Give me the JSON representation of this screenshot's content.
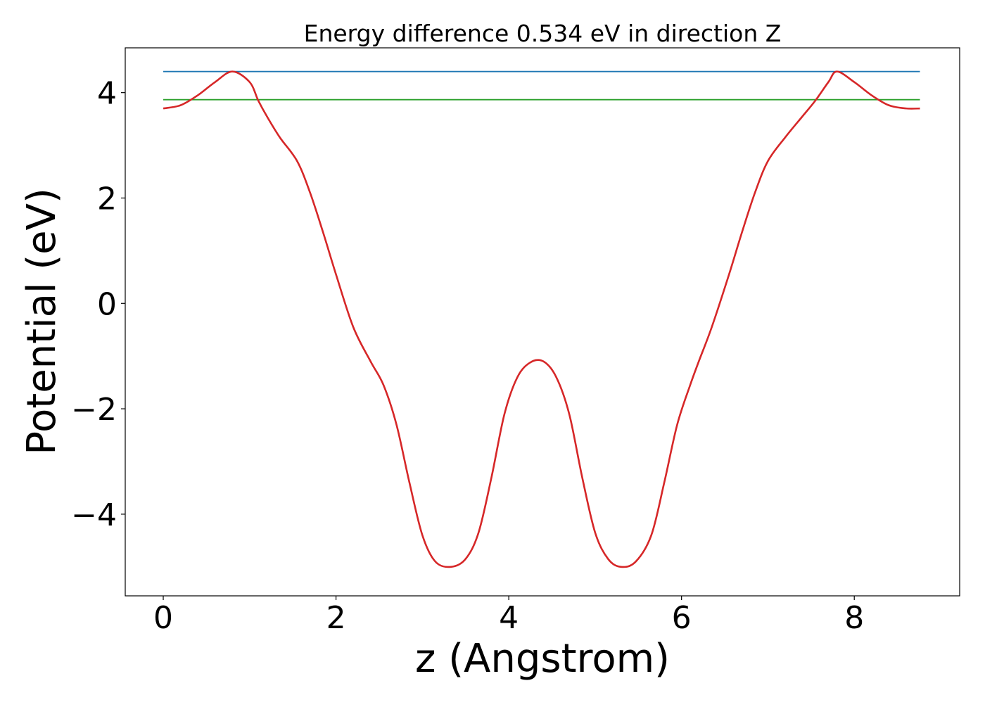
{
  "chart_data": {
    "type": "line",
    "title": "Energy difference 0.534 eV in direction Z",
    "xlabel": "z (Angstrom)",
    "ylabel": "Potential (eV)",
    "xlim": [
      -0.44,
      9.22
    ],
    "ylim": [
      -5.55,
      4.85
    ],
    "xticks": [
      0,
      2,
      4,
      6,
      8
    ],
    "xtick_labels": [
      "0",
      "2",
      "4",
      "6",
      "8"
    ],
    "yticks": [
      -4,
      -2,
      0,
      2,
      4
    ],
    "ytick_labels": [
      "−4",
      "−2",
      "0",
      "2",
      "4"
    ],
    "grid": false,
    "legend": "none",
    "series": [
      {
        "color": "#d62728",
        "x": [
          0.0,
          0.2,
          0.4,
          0.6,
          0.8,
          1.0,
          1.1,
          1.2,
          1.35,
          1.55,
          1.7,
          1.85,
          2.0,
          2.2,
          2.4,
          2.55,
          2.7,
          2.85,
          3.0,
          3.15,
          3.33,
          3.5,
          3.65,
          3.8,
          3.95,
          4.1,
          4.25,
          4.4,
          4.55,
          4.7,
          4.85,
          5.0,
          5.15,
          5.3,
          5.47,
          5.65,
          5.8,
          5.95,
          6.1,
          6.2,
          6.35,
          6.55,
          6.7,
          6.85,
          7.0,
          7.2,
          7.4,
          7.55,
          7.7,
          7.8,
          8.0,
          8.2,
          8.4,
          8.6,
          8.76
        ],
        "y": [
          3.7,
          3.76,
          3.95,
          4.2,
          4.4,
          4.2,
          3.85,
          3.55,
          3.15,
          2.7,
          2.1,
          1.35,
          0.55,
          -0.45,
          -1.1,
          -1.55,
          -2.3,
          -3.4,
          -4.4,
          -4.9,
          -5.0,
          -4.85,
          -4.35,
          -3.3,
          -2.1,
          -1.4,
          -1.12,
          -1.1,
          -1.4,
          -2.1,
          -3.3,
          -4.35,
          -4.85,
          -5.0,
          -4.9,
          -4.4,
          -3.4,
          -2.3,
          -1.55,
          -1.1,
          -0.45,
          0.55,
          1.35,
          2.1,
          2.7,
          3.15,
          3.55,
          3.85,
          4.2,
          4.4,
          4.2,
          3.95,
          3.76,
          3.7,
          3.7
        ]
      },
      {
        "color": "#1f77b4",
        "x": [
          0.0,
          8.76
        ],
        "y": [
          4.4,
          4.4
        ]
      },
      {
        "color": "#2ca02c",
        "x": [
          0.0,
          8.76
        ],
        "y": [
          3.866,
          3.866
        ]
      }
    ]
  }
}
